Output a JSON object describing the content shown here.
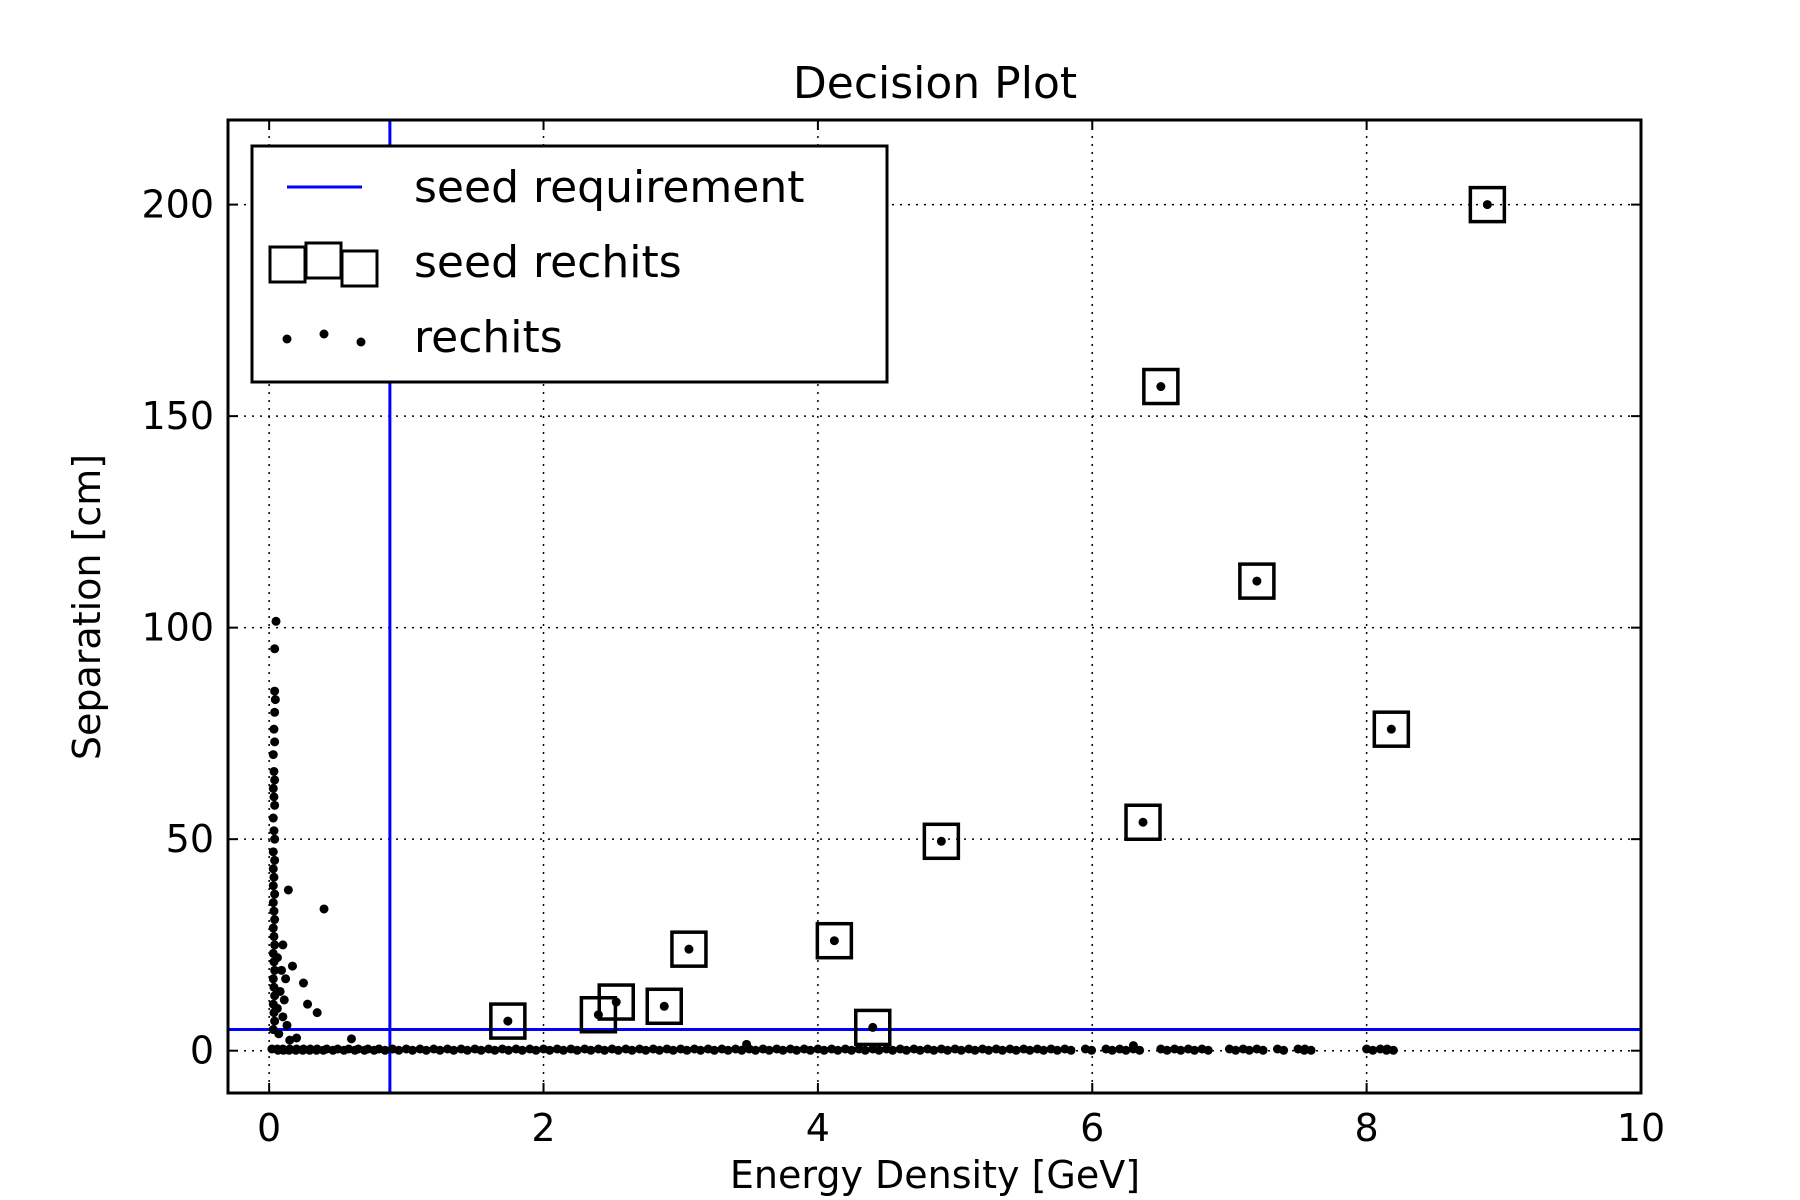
{
  "chart_data": {
    "type": "scatter",
    "title": "Decision Plot",
    "xlabel": "Energy Density [GeV]",
    "ylabel": "Separation [cm]",
    "xlim": [
      -0.3,
      10
    ],
    "ylim": [
      -10,
      220
    ],
    "xticks": [
      0,
      2,
      4,
      6,
      8,
      10
    ],
    "yticks": [
      0,
      50,
      100,
      150,
      200
    ],
    "grid": true,
    "legend": {
      "position": "top-left",
      "entries": [
        "seed requirement",
        "seed rechits",
        "rechits"
      ]
    },
    "thresholds": {
      "seed_x": 0.88,
      "seed_y": 5
    },
    "colors": {
      "seed_requirement": "#0000ff",
      "points": "#000000"
    },
    "seed_rechits": [
      {
        "x": 8.88,
        "y": 200
      },
      {
        "x": 6.5,
        "y": 157
      },
      {
        "x": 7.2,
        "y": 111
      },
      {
        "x": 8.18,
        "y": 76
      },
      {
        "x": 6.37,
        "y": 54
      },
      {
        "x": 4.9,
        "y": 49.5
      },
      {
        "x": 4.12,
        "y": 26
      },
      {
        "x": 3.06,
        "y": 24
      },
      {
        "x": 2.88,
        "y": 10.5
      },
      {
        "x": 2.4,
        "y": 8.5
      },
      {
        "x": 2.53,
        "y": 11.5
      },
      {
        "x": 1.74,
        "y": 7
      },
      {
        "x": 4.4,
        "y": 5.5
      }
    ],
    "rechits_high": [
      {
        "x": 0.05,
        "y": 101.5
      },
      {
        "x": 0.04,
        "y": 95
      },
      {
        "x": 0.04,
        "y": 85
      },
      {
        "x": 0.045,
        "y": 83
      },
      {
        "x": 0.04,
        "y": 80
      },
      {
        "x": 0.035,
        "y": 76
      },
      {
        "x": 0.04,
        "y": 73
      },
      {
        "x": 0.03,
        "y": 70
      },
      {
        "x": 0.035,
        "y": 66
      },
      {
        "x": 0.04,
        "y": 64
      },
      {
        "x": 0.03,
        "y": 62
      },
      {
        "x": 0.035,
        "y": 60
      },
      {
        "x": 0.04,
        "y": 58
      },
      {
        "x": 0.03,
        "y": 55
      },
      {
        "x": 0.035,
        "y": 52
      },
      {
        "x": 0.04,
        "y": 50
      },
      {
        "x": 0.03,
        "y": 47
      },
      {
        "x": 0.04,
        "y": 45
      },
      {
        "x": 0.03,
        "y": 43
      },
      {
        "x": 0.035,
        "y": 41
      },
      {
        "x": 0.03,
        "y": 39
      },
      {
        "x": 0.04,
        "y": 37
      },
      {
        "x": 0.03,
        "y": 35
      },
      {
        "x": 0.035,
        "y": 33
      },
      {
        "x": 0.04,
        "y": 31
      },
      {
        "x": 0.03,
        "y": 29
      },
      {
        "x": 0.035,
        "y": 27
      },
      {
        "x": 0.04,
        "y": 25
      },
      {
        "x": 0.03,
        "y": 23
      },
      {
        "x": 0.035,
        "y": 21
      },
      {
        "x": 0.04,
        "y": 19
      },
      {
        "x": 0.03,
        "y": 17
      },
      {
        "x": 0.035,
        "y": 15
      },
      {
        "x": 0.04,
        "y": 13
      },
      {
        "x": 0.03,
        "y": 11
      },
      {
        "x": 0.035,
        "y": 9
      },
      {
        "x": 0.04,
        "y": 7
      },
      {
        "x": 0.03,
        "y": 5
      },
      {
        "x": 0.14,
        "y": 38
      },
      {
        "x": 0.4,
        "y": 33.5
      },
      {
        "x": 0.1,
        "y": 25
      },
      {
        "x": 0.17,
        "y": 20
      },
      {
        "x": 0.25,
        "y": 16
      },
      {
        "x": 0.12,
        "y": 17
      },
      {
        "x": 0.08,
        "y": 14
      },
      {
        "x": 0.28,
        "y": 11
      },
      {
        "x": 0.35,
        "y": 9
      },
      {
        "x": 0.06,
        "y": 10
      },
      {
        "x": 0.1,
        "y": 8
      },
      {
        "x": 0.13,
        "y": 6
      },
      {
        "x": 0.07,
        "y": 4
      },
      {
        "x": 0.2,
        "y": 3
      },
      {
        "x": 0.15,
        "y": 2.5
      },
      {
        "x": 0.6,
        "y": 2.8
      },
      {
        "x": 3.48,
        "y": 1.5
      },
      {
        "x": 6.3,
        "y": 1.2
      },
      {
        "x": 0.09,
        "y": 19
      },
      {
        "x": 0.06,
        "y": 22
      },
      {
        "x": 0.11,
        "y": 12
      }
    ],
    "rechits_baseline": [
      0.02,
      0.06,
      0.1,
      0.15,
      0.2,
      0.25,
      0.3,
      0.35,
      0.42,
      0.5,
      0.58,
      0.65,
      0.72,
      0.8,
      0.9,
      1.0,
      1.1,
      1.2,
      1.3,
      1.4,
      1.5,
      1.6,
      1.7,
      1.8,
      1.9,
      2.0,
      2.1,
      2.2,
      2.3,
      2.4,
      2.5,
      2.6,
      2.7,
      2.8,
      2.9,
      3.0,
      3.1,
      3.2,
      3.3,
      3.4,
      3.5,
      3.6,
      3.7,
      3.8,
      3.9,
      4.0,
      4.1,
      4.2,
      4.3,
      4.4,
      4.5,
      4.6,
      4.7,
      4.8,
      4.9,
      5.0,
      5.1,
      5.2,
      5.3,
      5.4,
      5.5,
      5.6,
      5.7,
      5.8,
      5.95,
      6.1,
      6.2,
      6.3,
      6.5,
      6.6,
      6.7,
      6.8,
      7.0,
      7.1,
      7.2,
      7.35,
      7.5,
      7.55,
      8.0,
      8.1,
      8.15
    ]
  }
}
